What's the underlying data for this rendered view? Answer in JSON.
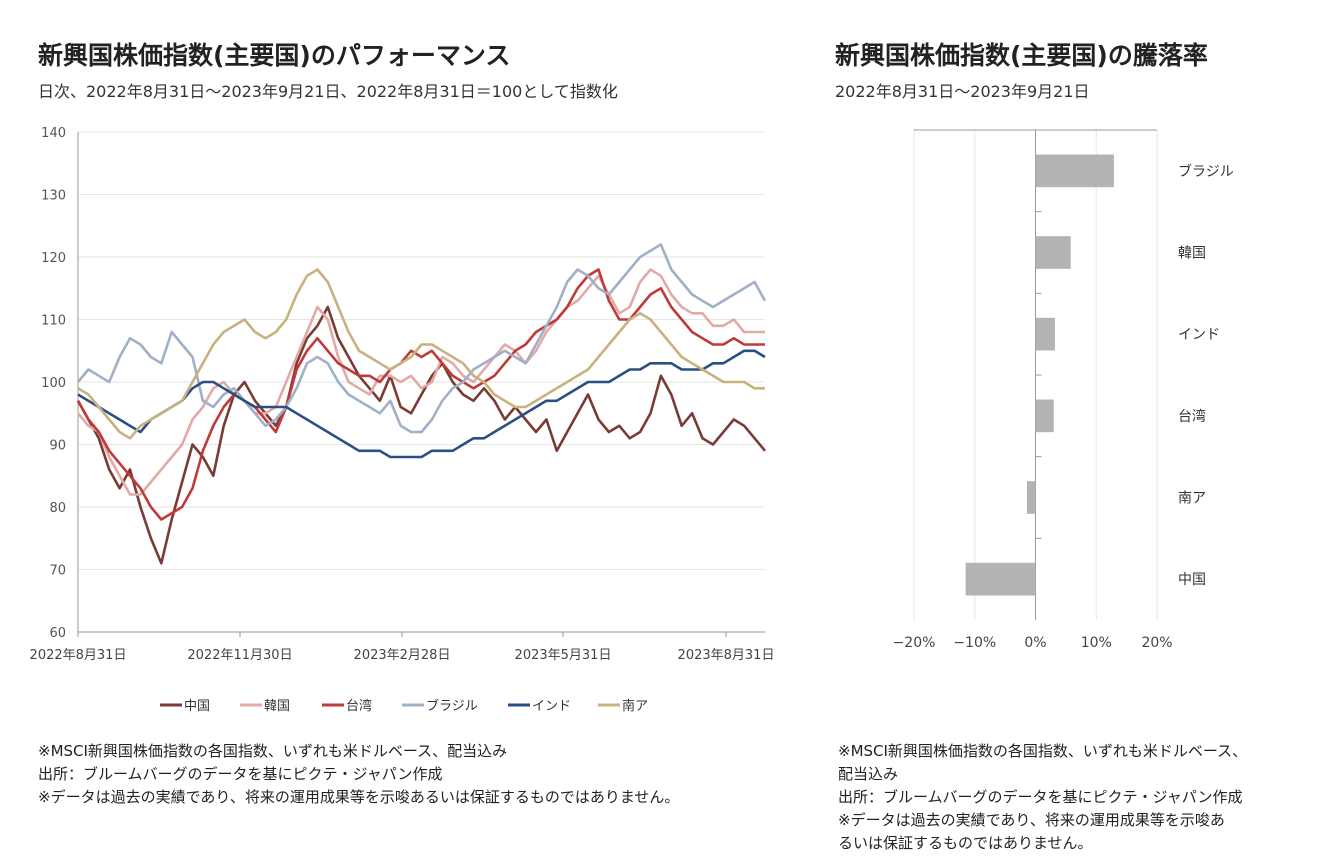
{
  "left": {
    "title": "新興国株価指数(主要国)のパフォーマンス",
    "subtitle": "日次、2022年8月31日～2023年9月21日、2022年8月31日＝100として指数化",
    "notes": [
      "※MSCI新興国株価指数の各国指数、いずれも米ドルベース、配当込み",
      "出所：ブルームバーグのデータを基にピクテ・ジャパン作成",
      "※データは過去の実績であり、将来の運用成果等を示唆あるいは保証するものではありません。"
    ]
  },
  "right": {
    "title": "新興国株価指数(主要国)の騰落率",
    "subtitle": "2022年8月31日～2023年9月21日",
    "notes": [
      "※MSCI新興国株価指数の各国指数、いずれも米ドルベース、",
      "配当込み",
      "出所：ブルームバーグのデータを基にピクテ・ジャパン作成",
      "※データは過去の実績であり、将来の運用成果等を示唆あ",
      "るいは保証するものではありません。"
    ]
  },
  "chart_data": [
    {
      "type": "line",
      "x_ticks": [
        "2022年8月31日",
        "2022年11月30日",
        "2023年2月28日",
        "2023年5月31日",
        "2023年8月31日"
      ],
      "ylim": [
        60,
        140
      ],
      "y_ticks": [
        60,
        70,
        80,
        90,
        100,
        110,
        120,
        130,
        140
      ],
      "grid": true,
      "legend_position": "bottom",
      "series": [
        {
          "name": "中国",
          "color": "#7a3b34",
          "values": [
            97,
            94,
            91,
            86,
            83,
            86,
            80,
            75,
            71,
            78,
            84,
            90,
            88,
            85,
            93,
            98,
            100,
            97,
            95,
            93,
            96,
            103,
            107,
            109,
            112,
            107,
            104,
            101,
            99,
            97,
            101,
            96,
            95,
            98,
            101,
            103,
            100,
            98,
            97,
            99,
            97,
            94,
            96,
            94,
            92,
            94,
            89,
            92,
            95,
            98,
            94,
            92,
            93,
            91,
            92,
            95,
            101,
            98,
            93,
            95,
            91,
            90,
            92,
            94,
            93,
            91,
            89
          ]
        },
        {
          "name": "韓国",
          "color": "#e2aaa6",
          "values": [
            95,
            93,
            92,
            88,
            85,
            82,
            82,
            84,
            86,
            88,
            90,
            94,
            96,
            99,
            100,
            98,
            97,
            95,
            95,
            96,
            100,
            104,
            108,
            112,
            110,
            104,
            100,
            99,
            98,
            101,
            101,
            100,
            101,
            99,
            100,
            104,
            103,
            101,
            100,
            102,
            104,
            106,
            105,
            103,
            105,
            108,
            110,
            112,
            113,
            115,
            117,
            114,
            111,
            112,
            116,
            118,
            117,
            114,
            112,
            111,
            111,
            109,
            109,
            110,
            108,
            108,
            108
          ]
        },
        {
          "name": "台湾",
          "color": "#c0393b",
          "values": [
            97,
            94,
            92,
            89,
            87,
            85,
            83,
            80,
            78,
            79,
            80,
            83,
            89,
            93,
            96,
            98,
            97,
            96,
            94,
            92,
            96,
            102,
            105,
            107,
            105,
            103,
            102,
            101,
            101,
            100,
            102,
            103,
            105,
            104,
            105,
            103,
            101,
            100,
            99,
            100,
            101,
            103,
            105,
            106,
            108,
            109,
            110,
            112,
            115,
            117,
            118,
            113,
            110,
            110,
            112,
            114,
            115,
            112,
            110,
            108,
            107,
            106,
            106,
            107,
            106,
            106,
            106
          ]
        },
        {
          "name": "ブラジル",
          "color": "#9fb0c7",
          "values": [
            100,
            102,
            101,
            100,
            104,
            107,
            106,
            104,
            103,
            108,
            106,
            104,
            97,
            96,
            98,
            99,
            97,
            95,
            93,
            94,
            96,
            99,
            103,
            104,
            103,
            100,
            98,
            97,
            96,
            95,
            97,
            93,
            92,
            92,
            94,
            97,
            99,
            100,
            102,
            103,
            104,
            105,
            104,
            103,
            106,
            109,
            112,
            116,
            118,
            117,
            115,
            114,
            116,
            118,
            120,
            121,
            122,
            118,
            116,
            114,
            113,
            112,
            113,
            114,
            115,
            116,
            113
          ]
        },
        {
          "name": "インド",
          "color": "#2b4f85",
          "values": [
            98,
            97,
            96,
            95,
            94,
            93,
            92,
            94,
            95,
            96,
            97,
            99,
            100,
            100,
            99,
            98,
            97,
            96,
            96,
            96,
            96,
            95,
            94,
            93,
            92,
            91,
            90,
            89,
            89,
            89,
            88,
            88,
            88,
            88,
            89,
            89,
            89,
            90,
            91,
            91,
            92,
            93,
            94,
            95,
            96,
            97,
            97,
            98,
            99,
            100,
            100,
            100,
            101,
            102,
            102,
            103,
            103,
            103,
            102,
            102,
            102,
            103,
            103,
            104,
            105,
            105,
            104
          ]
        },
        {
          "name": "南ア",
          "color": "#c8b27f",
          "values": [
            99,
            98,
            96,
            94,
            92,
            91,
            93,
            94,
            95,
            96,
            97,
            100,
            103,
            106,
            108,
            109,
            110,
            108,
            107,
            108,
            110,
            114,
            117,
            118,
            116,
            112,
            108,
            105,
            104,
            103,
            102,
            103,
            104,
            106,
            106,
            105,
            104,
            103,
            101,
            100,
            98,
            97,
            96,
            96,
            97,
            98,
            99,
            100,
            101,
            102,
            104,
            106,
            108,
            110,
            111,
            110,
            108,
            106,
            104,
            103,
            102,
            101,
            100,
            100,
            100,
            99,
            99
          ]
        }
      ]
    },
    {
      "type": "bar",
      "orientation": "horizontal",
      "categories": [
        "ブラジル",
        "韓国",
        "インド",
        "台湾",
        "南ア",
        "中国"
      ],
      "values": [
        12.9,
        5.8,
        3.2,
        3.0,
        -1.4,
        -11.5
      ],
      "color": "#b3b3b3",
      "xlim": [
        -20,
        20
      ],
      "x_ticks": [
        "−20%",
        "−10%",
        "0%",
        "10%",
        "20%"
      ],
      "x_tick_values": [
        -20,
        -10,
        0,
        10,
        20
      ]
    }
  ]
}
